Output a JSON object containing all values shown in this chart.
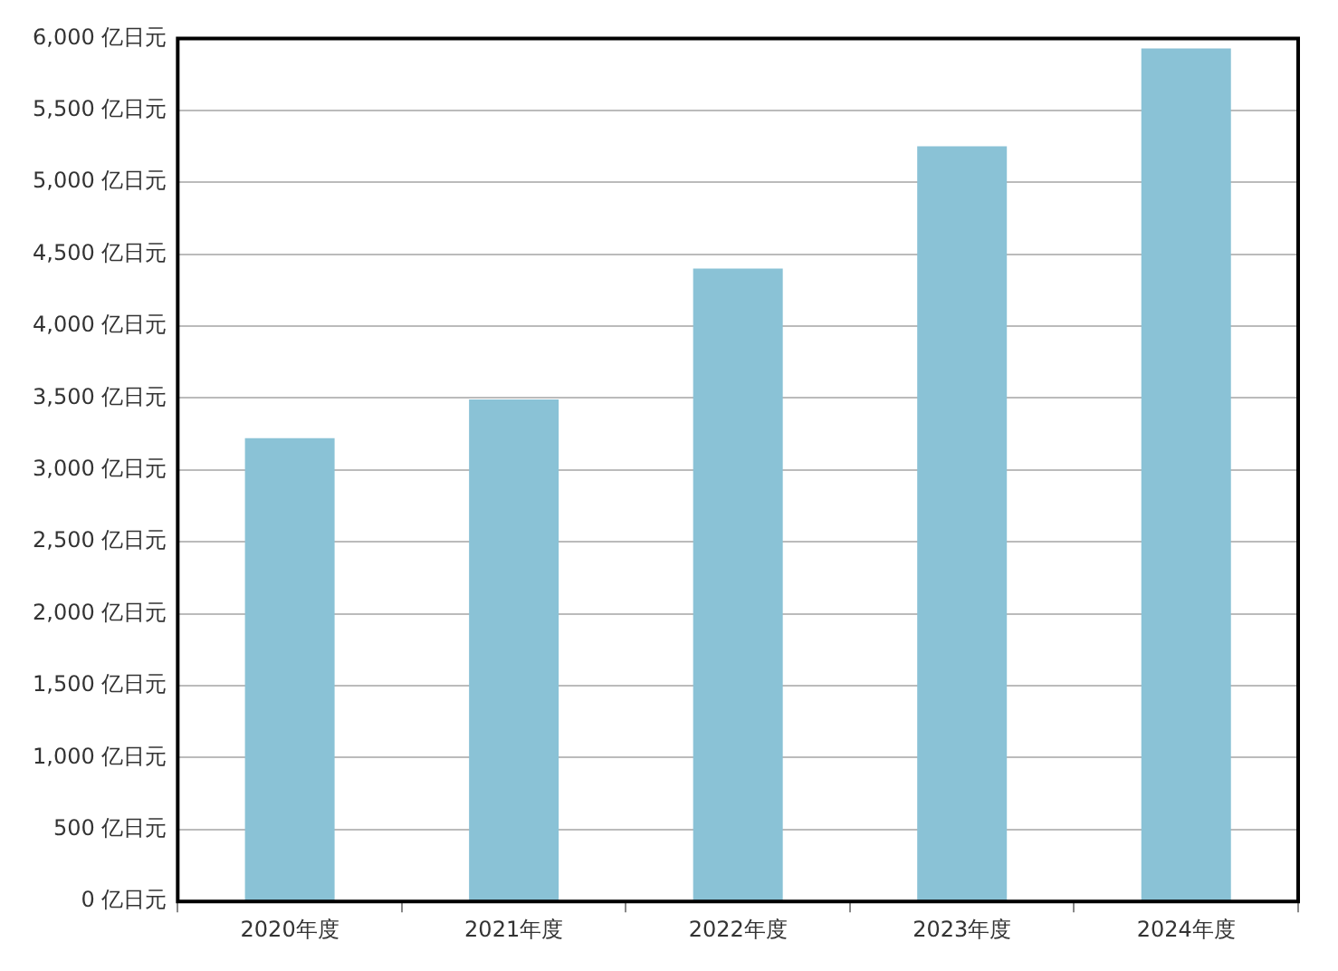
{
  "chart_data": {
    "type": "bar",
    "categories": [
      "2020年度",
      "2021年度",
      "2022年度",
      "2023年度",
      "2024年度"
    ],
    "values": [
      3220,
      3490,
      4400,
      5250,
      5930
    ],
    "color": "#8ac2d6",
    "ylim": [
      0,
      6000
    ],
    "yticks": [
      {
        "value": 0,
        "label": "0 亿日元"
      },
      {
        "value": 500,
        "label": "500 亿日元"
      },
      {
        "value": 1000,
        "label": "1,000 亿日元"
      },
      {
        "value": 1500,
        "label": "1,500 亿日元"
      },
      {
        "value": 2000,
        "label": "2,000 亿日元"
      },
      {
        "value": 2500,
        "label": "2,500 亿日元"
      },
      {
        "value": 3000,
        "label": "3,000 亿日元"
      },
      {
        "value": 3500,
        "label": "3,500 亿日元"
      },
      {
        "value": 4000,
        "label": "4,000 亿日元"
      },
      {
        "value": 4500,
        "label": "4,500 亿日元"
      },
      {
        "value": 5000,
        "label": "5,000 亿日元"
      },
      {
        "value": 5500,
        "label": "5,500 亿日元"
      },
      {
        "value": 6000,
        "label": "6,000 亿日元"
      }
    ],
    "grid": "y"
  }
}
